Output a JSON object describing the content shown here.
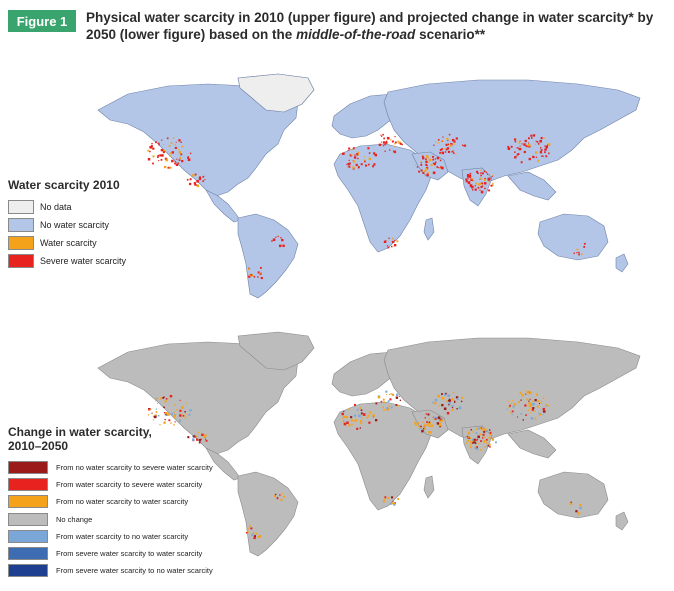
{
  "figure": {
    "badge": "Figure 1",
    "title_part1": "Physical water scarcity in 2010 (upper figure) and projected change in water scarcity* by 2050 (lower figure) based on the ",
    "title_italic": "middle-of-the-road",
    "title_part2": " scenario**"
  },
  "colors": {
    "ocean": "#ffffff",
    "land_top": "#b3c6e7",
    "land_bottom": "#bcbcbc",
    "border_top": "#6f82a8",
    "border_bottom": "#8a8a8a",
    "no_data": "#eeeeee",
    "water_scarcity": "#f5a21b",
    "severe": "#e8231f",
    "dark_red": "#9b1b1b",
    "light_blue": "#7aa6d8",
    "mid_blue": "#3e6cb3",
    "dark_blue": "#1e3f8f"
  },
  "legend_top": {
    "title": "Water scarcity 2010",
    "items": [
      {
        "label": "No data",
        "color": "#eeeeee"
      },
      {
        "label": "No water scarcity",
        "color": "#b3c6e7"
      },
      {
        "label": "Water scarcity",
        "color": "#f5a21b"
      },
      {
        "label": "Severe water scarcity",
        "color": "#e8231f"
      }
    ]
  },
  "legend_bottom": {
    "title_line1": "Change in water scarcity,",
    "title_line2": "2010–2050",
    "items": [
      {
        "label": "From no water scarcity to severe water scarcity",
        "color": "#9b1b1b"
      },
      {
        "label": "From water scarcity to severe water scarcity",
        "color": "#e8231f"
      },
      {
        "label": "From no water scarcity to water scarcity",
        "color": "#f5a21b"
      },
      {
        "label": "No change",
        "color": "#bcbcbc"
      },
      {
        "label": "From water scarcity to no water scarcity",
        "color": "#7aa6d8"
      },
      {
        "label": "From severe water scarcity to water scarcity",
        "color": "#3e6cb3"
      },
      {
        "label": "From severe water scarcity to no water scarcity",
        "color": "#1e3f8f"
      }
    ]
  }
}
